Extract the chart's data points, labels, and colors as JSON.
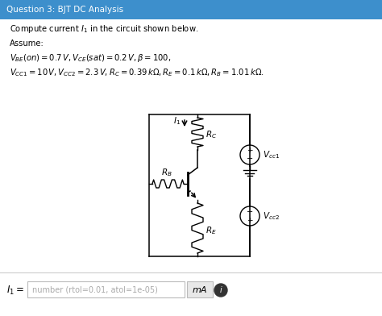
{
  "title": "Question 3: BJT DC Analysis",
  "title_bg": "#3d8fcc",
  "title_color": "white",
  "bg_color": "#ffffff",
  "line1": "Compute current $I_1$ in the circuit shown below.",
  "line2": "Assume:",
  "line3": "$V_{BE}(on) = 0.7\\,V, V_{CE}(sat) = 0.2\\,V, \\beta = 100,$",
  "line4": "$V_{CC1} = 10\\,V, V_{CC2} = 2.3\\,V, R_C = 0.39\\,k\\Omega, R_E = 0.1\\,k\\Omega, R_B = 1.01\\,k\\Omega.$",
  "footer_label": "$I_1 =$",
  "footer_placeholder": "number (rtol=0.01, atol=1e-05)",
  "footer_unit": "mA",
  "sep_color": "#cccccc",
  "footer_bg": "#f0f0f0"
}
